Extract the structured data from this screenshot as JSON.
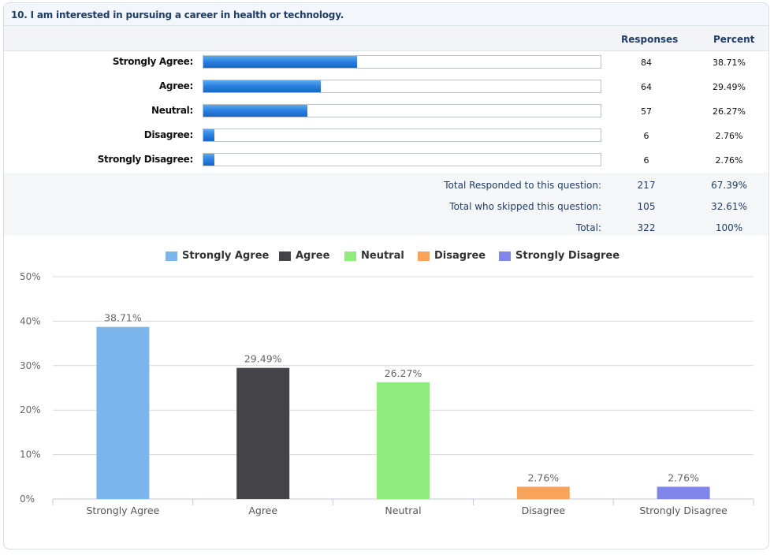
{
  "question": {
    "title": "10. I am interested in pursuing a career in health or technology."
  },
  "table": {
    "headers": {
      "responses": "Responses",
      "percent": "Percent"
    },
    "rows": [
      {
        "label": "Strongly Agree:",
        "responses": "84",
        "percent": "38.71%",
        "fraction": 0.3871
      },
      {
        "label": "Agree:",
        "responses": "64",
        "percent": "29.49%",
        "fraction": 0.2949
      },
      {
        "label": "Neutral:",
        "responses": "57",
        "percent": "26.27%",
        "fraction": 0.2627
      },
      {
        "label": "Disagree:",
        "responses": "6",
        "percent": "2.76%",
        "fraction": 0.0276
      },
      {
        "label": "Strongly Disagree:",
        "responses": "6",
        "percent": "2.76%",
        "fraction": 0.0276
      }
    ],
    "totals": [
      {
        "label": "Total Responded to this question:",
        "responses": "217",
        "percent": "67.39%"
      },
      {
        "label": "Total who skipped this question:",
        "responses": "105",
        "percent": "32.61%"
      },
      {
        "label": "Total:",
        "responses": "322",
        "percent": "100%"
      }
    ]
  },
  "chart_data": {
    "type": "bar",
    "title": "",
    "xlabel": "",
    "ylabel": "",
    "categories": [
      "Strongly Agree",
      "Agree",
      "Neutral",
      "Disagree",
      "Strongly Disagree"
    ],
    "values": [
      38.71,
      29.49,
      26.27,
      2.76,
      2.76
    ],
    "value_labels": [
      "38.71%",
      "29.49%",
      "26.27%",
      "2.76%",
      "2.76%"
    ],
    "colors": [
      "#7cb5ec",
      "#434348",
      "#90ed7d",
      "#f7a35c",
      "#8085e9"
    ],
    "ylim": [
      0,
      50
    ],
    "yticks": [
      0,
      10,
      20,
      30,
      40,
      50
    ],
    "ytick_labels": [
      "0%",
      "10%",
      "20%",
      "30%",
      "40%",
      "50%"
    ],
    "grid": true,
    "legend_position": "top-center"
  }
}
